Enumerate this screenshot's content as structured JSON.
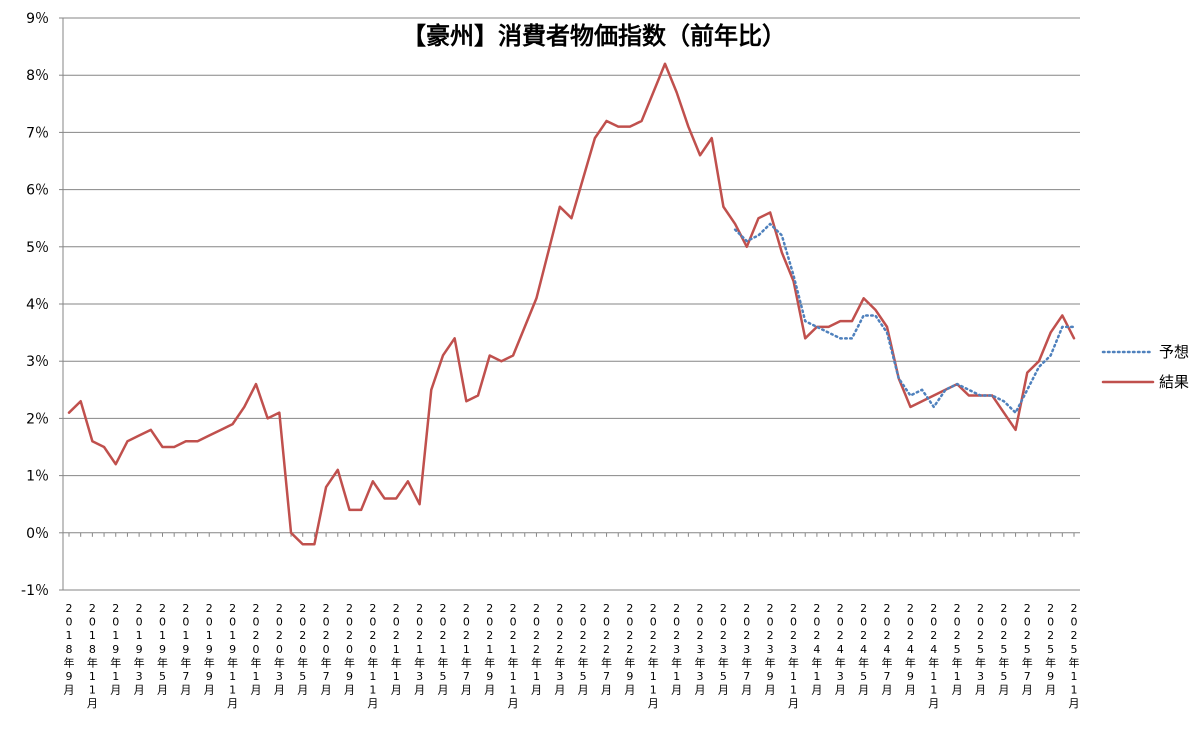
{
  "chart_data": {
    "type": "line",
    "title": "【豪州】消費者物価指数（前年比）",
    "ylim": [
      -1,
      9
    ],
    "y_ticks": [
      -1,
      0,
      1,
      2,
      3,
      4,
      5,
      6,
      7,
      8,
      9
    ],
    "y_tick_labels": [
      "-1％",
      "0％",
      "1％",
      "2％",
      "3％",
      "4％",
      "5％",
      "6％",
      "7％",
      "8％",
      "9％"
    ],
    "grid": true,
    "legend_position": "right",
    "x_labels": [
      "2018年9月",
      "2018年11月",
      "2019年1月",
      "2019年3月",
      "2019年5月",
      "2019年7月",
      "2019年9月",
      "2019年11月",
      "2020年1月",
      "2020年3月",
      "2020年5月",
      "2020年7月",
      "2020年9月",
      "2020年11月",
      "2021年1月",
      "2021年3月",
      "2021年5月",
      "2021年7月",
      "2021年9月",
      "2021年11月",
      "2022年1月",
      "2022年3月",
      "2022年5月",
      "2022年7月",
      "2022年9月",
      "2022年11月",
      "2023年1月",
      "2023年3月",
      "2023年5月",
      "2023年7月",
      "2023年9月",
      "2023年11月",
      "2024年1月",
      "2024年3月",
      "2024年5月",
      "2024年7月",
      "2024年9月",
      "2024年11月",
      "2025年1月",
      "2025年3月",
      "2025年5月",
      "2025年7月",
      "2025年9月",
      "2025年11月"
    ],
    "series": [
      {
        "name": "予想",
        "style": "dotted",
        "color": "#4F81BD",
        "start_index": 57,
        "values": [
          5.3,
          5.1,
          5.2,
          5.4,
          5.2,
          4.5,
          3.7,
          3.6,
          3.5,
          3.4,
          3.4,
          3.8,
          3.8,
          3.5,
          2.7,
          2.4,
          2.5,
          2.2,
          2.5,
          2.6,
          2.5,
          2.4,
          2.4,
          2.3,
          2.1,
          2.5,
          2.9,
          3.1,
          3.6,
          3.6
        ]
      },
      {
        "name": "結果",
        "style": "solid",
        "color": "#C0504D",
        "start_index": 0,
        "values": [
          2.1,
          2.3,
          1.6,
          1.5,
          1.2,
          1.6,
          1.7,
          1.8,
          1.5,
          1.5,
          1.6,
          1.6,
          1.7,
          1.8,
          1.9,
          2.2,
          2.6,
          2.0,
          2.1,
          0.0,
          -0.2,
          -0.2,
          0.8,
          1.1,
          0.4,
          0.4,
          0.9,
          0.6,
          0.6,
          0.9,
          0.5,
          2.5,
          3.1,
          3.4,
          2.3,
          2.4,
          3.1,
          3.0,
          3.1,
          3.6,
          4.1,
          4.9,
          5.7,
          5.5,
          6.2,
          6.9,
          7.2,
          7.1,
          7.1,
          7.2,
          7.7,
          8.2,
          7.7,
          7.1,
          6.6,
          6.9,
          5.7,
          5.4,
          5.0,
          5.5,
          5.6,
          4.9,
          4.4,
          3.4,
          3.6,
          3.6,
          3.7,
          3.7,
          4.1,
          3.9,
          3.6,
          2.7,
          2.2,
          2.3,
          2.4,
          2.5,
          2.6,
          2.4,
          2.4,
          2.4,
          2.1,
          1.8,
          2.8,
          3.0,
          3.5,
          3.8,
          3.4
        ]
      }
    ]
  }
}
